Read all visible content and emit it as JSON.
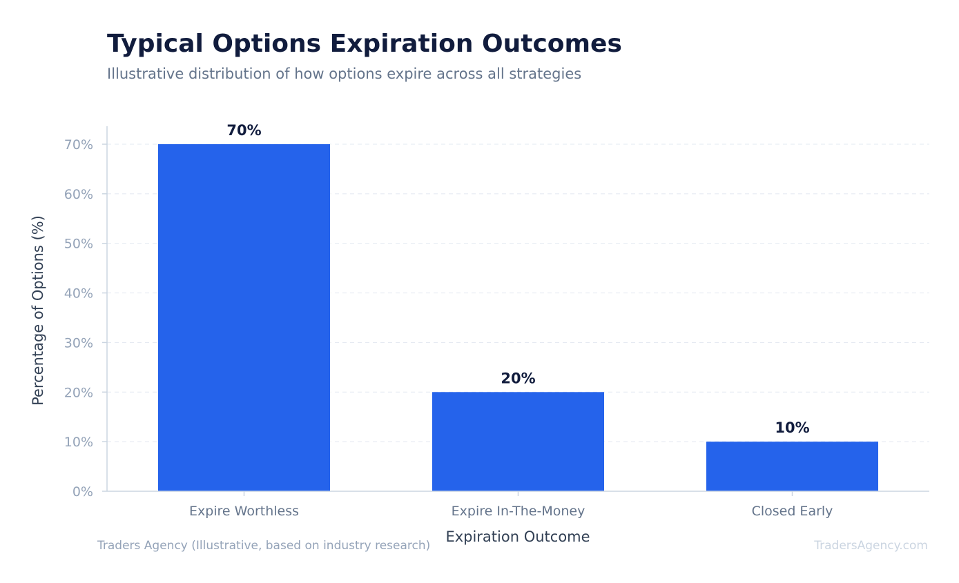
{
  "title": "Typical Options Expiration Outcomes",
  "subtitle": "Illustrative distribution of how options expire across all strategies",
  "source": "Traders Agency (Illustrative, based on industry research)",
  "watermark": "TradersAgency.com",
  "colors": {
    "bar": "#2563eb",
    "grid": "#e2e8f0",
    "axis": "#cbd5e1"
  },
  "chart_data": {
    "type": "bar",
    "categories": [
      "Expire Worthless",
      "Expire In-The-Money",
      "Closed Early"
    ],
    "values": [
      70,
      20,
      10
    ],
    "value_labels": [
      "70%",
      "20%",
      "10%"
    ],
    "xlabel": "Expiration Outcome",
    "ylabel": "Percentage of Options (%)",
    "ylim": [
      0,
      70
    ],
    "yticks": [
      0,
      10,
      20,
      30,
      40,
      50,
      60,
      70
    ],
    "ytick_labels": [
      "0%",
      "10%",
      "20%",
      "30%",
      "40%",
      "50%",
      "60%",
      "70%"
    ],
    "grid": true,
    "legend": "none"
  }
}
